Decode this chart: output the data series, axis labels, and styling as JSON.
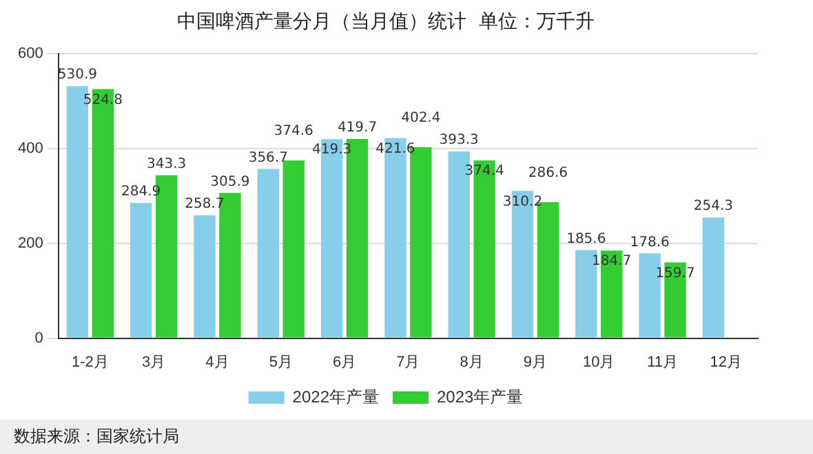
{
  "chart_data": {
    "type": "bar",
    "title": "中国啤酒产量分月（当月值）统计  单位：万千升",
    "categories": [
      "1-2月",
      "3月",
      "4月",
      "5月",
      "6月",
      "7月",
      "8月",
      "9月",
      "10月",
      "11月",
      "12月"
    ],
    "series": [
      {
        "name": "2022年产量",
        "color": "#87ceeb",
        "values": [
          530.9,
          284.9,
          258.7,
          356.7,
          419.3,
          421.6,
          393.3,
          310.2,
          185.6,
          178.6,
          254.3
        ]
      },
      {
        "name": "2023年产量",
        "color": "#33cc33",
        "values": [
          524.8,
          343.3,
          305.9,
          374.6,
          419.7,
          402.4,
          374.4,
          286.6,
          184.7,
          159.7,
          null
        ]
      }
    ],
    "ylim": [
      0,
      600
    ],
    "yticks": [
      0,
      200,
      400,
      600
    ],
    "grid": "y",
    "legend": "bottom",
    "data_labels": true,
    "annotations": [
      "数据来源：国家统计局"
    ]
  }
}
